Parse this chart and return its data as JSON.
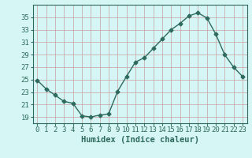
{
  "x": [
    0,
    1,
    2,
    3,
    4,
    5,
    6,
    7,
    8,
    9,
    10,
    11,
    12,
    13,
    14,
    15,
    16,
    17,
    18,
    19,
    20,
    21,
    22,
    23
  ],
  "y": [
    24.9,
    23.5,
    22.5,
    21.5,
    21.2,
    19.2,
    19.0,
    19.3,
    19.5,
    23.1,
    25.5,
    27.8,
    28.5,
    30.0,
    31.5,
    33.0,
    34.0,
    35.2,
    35.7,
    34.9,
    32.3,
    29.0,
    27.0,
    25.5
  ],
  "line_color": "#2e6b5e",
  "marker": "D",
  "marker_size": 2.5,
  "bg_color": "#d6f5f5",
  "grid_color_major": "#c8a0a0",
  "grid_color_minor": "#d6eaea",
  "xlabel": "Humidex (Indice chaleur)",
  "ylim": [
    18,
    37
  ],
  "xlim": [
    -0.5,
    23.5
  ],
  "yticks": [
    19,
    21,
    23,
    25,
    27,
    29,
    31,
    33,
    35
  ],
  "xticks": [
    0,
    1,
    2,
    3,
    4,
    5,
    6,
    7,
    8,
    9,
    10,
    11,
    12,
    13,
    14,
    15,
    16,
    17,
    18,
    19,
    20,
    21,
    22,
    23
  ],
  "xlabel_fontsize": 7.5,
  "tick_fontsize": 6.5,
  "spine_color": "#2e6b5e"
}
